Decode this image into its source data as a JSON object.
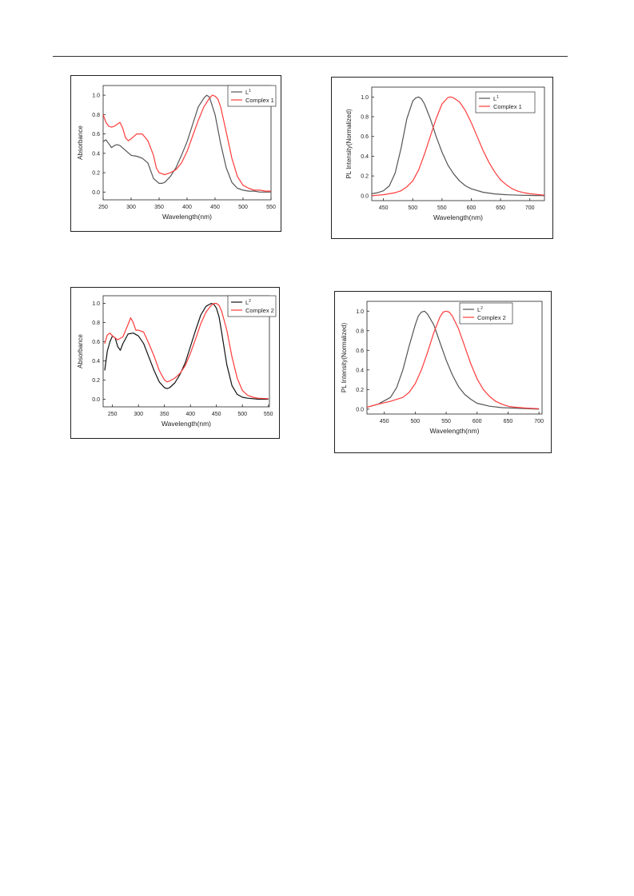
{
  "colors": {
    "ligand": "#555555",
    "ligand2": "#111111",
    "complex": "#ff3b3b"
  },
  "chart_data": [
    {
      "type": "line",
      "xlabel": "Wavelength(nm)",
      "ylabel": "Absorbance",
      "xlim": [
        250,
        550
      ],
      "ylim": [
        -0.08,
        1.1
      ],
      "xticks": [
        "250",
        "300",
        "350",
        "400",
        "450",
        "500",
        "550"
      ],
      "yticks": [
        "0.0",
        "0.2",
        "0.4",
        "0.6",
        "0.8",
        "1.0"
      ],
      "series": [
        {
          "name": "L",
          "sup": "1",
          "color": "#555555",
          "x": [
            250,
            255,
            260,
            265,
            270,
            275,
            280,
            290,
            300,
            310,
            320,
            330,
            340,
            350,
            355,
            360,
            370,
            380,
            390,
            400,
            410,
            420,
            430,
            435,
            440,
            450,
            460,
            470,
            480,
            490,
            500,
            510,
            520,
            530,
            540,
            550
          ],
          "y": [
            0.52,
            0.54,
            0.5,
            0.46,
            0.48,
            0.49,
            0.48,
            0.43,
            0.38,
            0.37,
            0.35,
            0.3,
            0.14,
            0.09,
            0.09,
            0.1,
            0.16,
            0.25,
            0.38,
            0.52,
            0.7,
            0.88,
            0.97,
            1.0,
            0.98,
            0.8,
            0.5,
            0.25,
            0.1,
            0.04,
            0.02,
            0.01,
            0.01,
            0.0,
            0.0,
            0.0
          ]
        },
        {
          "name": "Complex 1",
          "color": "#ff3b3b",
          "x": [
            250,
            255,
            260,
            265,
            270,
            275,
            280,
            285,
            290,
            295,
            300,
            310,
            320,
            330,
            340,
            345,
            350,
            360,
            370,
            380,
            390,
            400,
            410,
            420,
            430,
            440,
            445,
            450,
            455,
            460,
            470,
            480,
            490,
            500,
            510,
            520,
            530,
            540,
            550
          ],
          "y": [
            0.8,
            0.72,
            0.68,
            0.67,
            0.68,
            0.7,
            0.72,
            0.66,
            0.56,
            0.53,
            0.55,
            0.6,
            0.6,
            0.53,
            0.38,
            0.25,
            0.2,
            0.18,
            0.2,
            0.23,
            0.3,
            0.42,
            0.58,
            0.74,
            0.88,
            0.97,
            1.0,
            0.99,
            0.96,
            0.88,
            0.62,
            0.35,
            0.16,
            0.07,
            0.04,
            0.02,
            0.02,
            0.01,
            0.01
          ]
        }
      ]
    },
    {
      "type": "line",
      "xlabel": "Wavelength(nm)",
      "ylabel": "PL Intensity(Normalized)",
      "xlim": [
        430,
        725
      ],
      "ylim": [
        -0.05,
        1.1
      ],
      "xticks": [
        "450",
        "500",
        "550",
        "600",
        "650",
        "700"
      ],
      "yticks": [
        "0.0",
        "0.2",
        "0.4",
        "0.6",
        "0.8",
        "1.0"
      ],
      "series": [
        {
          "name": "L",
          "sup": "1",
          "color": "#555555",
          "x": [
            430,
            440,
            450,
            460,
            470,
            480,
            490,
            500,
            505,
            510,
            515,
            520,
            530,
            540,
            550,
            560,
            570,
            580,
            590,
            600,
            620,
            640,
            660,
            680,
            700,
            725
          ],
          "y": [
            0.02,
            0.03,
            0.05,
            0.1,
            0.23,
            0.48,
            0.78,
            0.96,
            0.99,
            1.0,
            0.98,
            0.93,
            0.78,
            0.6,
            0.44,
            0.31,
            0.22,
            0.15,
            0.1,
            0.07,
            0.035,
            0.018,
            0.01,
            0.005,
            0.003,
            0.0
          ]
        },
        {
          "name": "Complex 1",
          "color": "#ff3b3b",
          "x": [
            430,
            450,
            470,
            480,
            490,
            500,
            510,
            520,
            530,
            540,
            550,
            560,
            565,
            570,
            580,
            590,
            600,
            610,
            620,
            630,
            640,
            650,
            660,
            670,
            680,
            690,
            700,
            725
          ],
          "y": [
            0.0,
            0.01,
            0.03,
            0.05,
            0.09,
            0.15,
            0.26,
            0.42,
            0.6,
            0.78,
            0.93,
            0.995,
            1.0,
            0.99,
            0.95,
            0.86,
            0.74,
            0.6,
            0.46,
            0.34,
            0.24,
            0.16,
            0.11,
            0.07,
            0.045,
            0.03,
            0.02,
            0.005
          ]
        }
      ]
    },
    {
      "type": "line",
      "xlabel": "Wavelength(nm)",
      "ylabel": "Absorbance",
      "xlim": [
        232,
        552
      ],
      "ylim": [
        -0.08,
        1.08
      ],
      "xticks": [
        "250",
        "300",
        "350",
        "400",
        "450",
        "500",
        "550"
      ],
      "yticks": [
        "0.0",
        "0.2",
        "0.4",
        "0.6",
        "0.8",
        "1.0"
      ],
      "series": [
        {
          "name": "L",
          "sup": "2",
          "color": "#111111",
          "x": [
            235,
            240,
            245,
            250,
            255,
            260,
            265,
            270,
            280,
            290,
            300,
            310,
            320,
            330,
            340,
            350,
            355,
            360,
            370,
            380,
            390,
            400,
            410,
            420,
            430,
            440,
            445,
            450,
            455,
            460,
            470,
            480,
            490,
            500,
            510,
            520,
            530,
            550
          ],
          "y": [
            0.3,
            0.5,
            0.6,
            0.66,
            0.64,
            0.55,
            0.51,
            0.58,
            0.68,
            0.69,
            0.66,
            0.58,
            0.44,
            0.3,
            0.18,
            0.12,
            0.11,
            0.12,
            0.17,
            0.26,
            0.38,
            0.55,
            0.72,
            0.88,
            0.97,
            1.0,
            0.99,
            0.95,
            0.86,
            0.7,
            0.36,
            0.14,
            0.05,
            0.02,
            0.01,
            0.005,
            0.0,
            0.0
          ]
        },
        {
          "name": "Complex 2",
          "color": "#ff3b3b",
          "x": [
            235,
            240,
            245,
            250,
            260,
            270,
            280,
            285,
            290,
            295,
            300,
            310,
            320,
            330,
            340,
            350,
            355,
            360,
            370,
            380,
            390,
            400,
            410,
            420,
            430,
            440,
            445,
            450,
            455,
            460,
            470,
            480,
            490,
            500,
            510,
            520,
            530,
            550
          ],
          "y": [
            0.58,
            0.67,
            0.69,
            0.66,
            0.62,
            0.65,
            0.78,
            0.85,
            0.8,
            0.72,
            0.72,
            0.7,
            0.58,
            0.45,
            0.3,
            0.2,
            0.18,
            0.19,
            0.22,
            0.27,
            0.35,
            0.48,
            0.63,
            0.79,
            0.91,
            0.98,
            1.0,
            1.0,
            0.98,
            0.92,
            0.72,
            0.44,
            0.22,
            0.09,
            0.04,
            0.02,
            0.01,
            0.005
          ]
        }
      ]
    },
    {
      "type": "line",
      "xlabel": "Wavelength(nm)",
      "ylabel": "PL Intensity(Normalized)",
      "xlim": [
        422,
        705
      ],
      "ylim": [
        -0.05,
        1.1
      ],
      "xticks": [
        "450",
        "500",
        "550",
        "600",
        "650",
        "700"
      ],
      "yticks": [
        "0.0",
        "0.2",
        "0.4",
        "0.6",
        "0.8",
        "1.0"
      ],
      "series": [
        {
          "name": "L",
          "sup": "2",
          "color": "#555555",
          "x": [
            422,
            440,
            460,
            470,
            480,
            490,
            500,
            505,
            510,
            515,
            520,
            530,
            540,
            550,
            560,
            570,
            580,
            590,
            600,
            620,
            640,
            660,
            680,
            700
          ],
          "y": [
            0.02,
            0.05,
            0.12,
            0.22,
            0.4,
            0.64,
            0.86,
            0.95,
            0.99,
            1.0,
            0.97,
            0.86,
            0.68,
            0.5,
            0.35,
            0.23,
            0.15,
            0.1,
            0.06,
            0.03,
            0.015,
            0.01,
            0.005,
            0.0
          ]
        },
        {
          "name": "Complex 2",
          "color": "#ff3b3b",
          "x": [
            422,
            440,
            460,
            480,
            490,
            500,
            510,
            520,
            530,
            540,
            545,
            550,
            555,
            560,
            570,
            580,
            590,
            600,
            610,
            620,
            630,
            640,
            650,
            660,
            680,
            700
          ],
          "y": [
            0.02,
            0.05,
            0.08,
            0.12,
            0.17,
            0.26,
            0.4,
            0.58,
            0.78,
            0.94,
            0.99,
            1.0,
            0.99,
            0.95,
            0.82,
            0.64,
            0.46,
            0.31,
            0.2,
            0.13,
            0.08,
            0.05,
            0.03,
            0.02,
            0.01,
            0.005
          ]
        }
      ]
    }
  ]
}
